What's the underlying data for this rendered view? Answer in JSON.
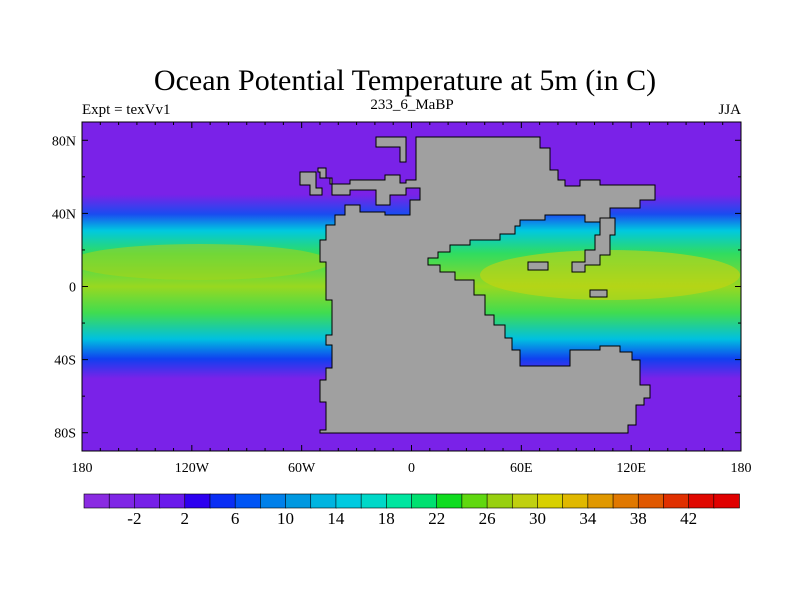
{
  "chart_data": {
    "type": "heatmap",
    "title": "Ocean Potential Temperature at 5m (in C)",
    "subtitle_left": "Expt = texVv1",
    "subtitle_center": "233_6_MaBP",
    "subtitle_right": "JJA",
    "x_ticks": [
      {
        "value": -180,
        "label": "180"
      },
      {
        "value": -120,
        "label": "120W"
      },
      {
        "value": -60,
        "label": "60W"
      },
      {
        "value": 0,
        "label": "0"
      },
      {
        "value": 60,
        "label": "60E"
      },
      {
        "value": 120,
        "label": "120E"
      },
      {
        "value": 180,
        "label": "180"
      }
    ],
    "y_ticks": [
      {
        "value": 80,
        "label": "80N"
      },
      {
        "value": 40,
        "label": "40N"
      },
      {
        "value": 0,
        "label": "0"
      },
      {
        "value": -40,
        "label": "40S"
      },
      {
        "value": -80,
        "label": "80S"
      }
    ],
    "xlim": [
      -180,
      180
    ],
    "ylim": [
      -90,
      90
    ],
    "colorbar": {
      "min": -6,
      "max": 46,
      "step": 2,
      "labels": [
        "-2",
        "2",
        "6",
        "10",
        "14",
        "18",
        "22",
        "26",
        "30",
        "34",
        "38",
        "42"
      ],
      "colors": [
        "#8a2be2",
        "#7f26e6",
        "#7620e8",
        "#6a1aec",
        "#2d00f0",
        "#0a2ef5",
        "#0055f5",
        "#0080ea",
        "#0098e0",
        "#00b4e0",
        "#00cae0",
        "#00d8c8",
        "#00e6a0",
        "#00e070",
        "#10dc20",
        "#60d810",
        "#98d010",
        "#c0d010",
        "#d8d000",
        "#e0b800",
        "#e09800",
        "#e07800",
        "#e05800",
        "#e03000",
        "#e00800",
        "#e00000"
      ]
    },
    "land_color": "#a0a0a0"
  }
}
